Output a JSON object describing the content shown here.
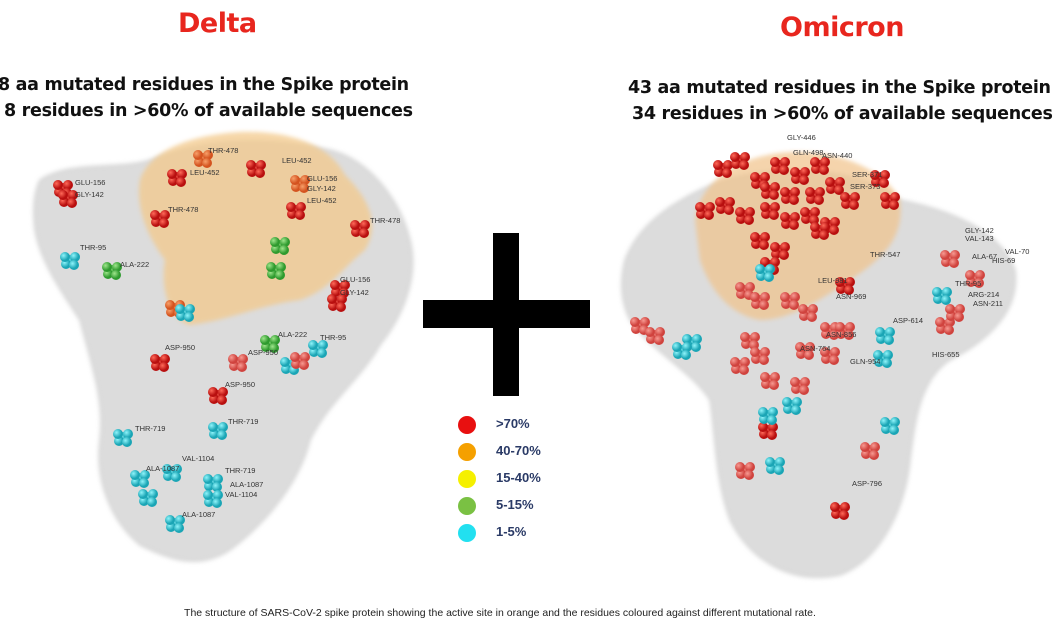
{
  "panels": {
    "delta": {
      "title": "Delta",
      "line1": "8 aa mutated residues in the Spike protein",
      "line2": "8 residues in >60% of available sequences",
      "residue_labels": [
        "THR-478",
        "LEU-452",
        "LEU-452",
        "GLU-156",
        "GLY-142",
        "LEU-452",
        "GLU-156",
        "GLY-142",
        "THR-478",
        "THR-478",
        "THR-95",
        "ALA-222",
        "GLU-156",
        "GLY-142",
        "ALA-222",
        "THR-95",
        "ASP-950",
        "ASP-950",
        "ASP-950",
        "THR-719",
        "THR-719",
        "VAL-1104",
        "ALA-1087",
        "THR-719",
        "ALA-1087",
        "VAL-1104",
        "ALA-1087"
      ]
    },
    "omicron": {
      "title": "Omicron",
      "line1": "43 aa mutated residues in the Spike protein",
      "line2": "34 residues in >60% of available sequences",
      "residue_labels": [
        "GLY-446",
        "GLN-498",
        "ASN-440",
        "SER-371",
        "SER-373",
        "THR-547",
        "LEU-981",
        "ASN-969",
        "ASP-614",
        "ASN-856",
        "ASN-764",
        "GLN-954",
        "HIS-655",
        "GLY-142",
        "VAL-143",
        "VAL-70",
        "ALA-67",
        "HIS-69",
        "THR-95",
        "ARG-214",
        "ASN-211",
        "ASP-796"
      ]
    }
  },
  "operator_symbol": "plus",
  "legend": [
    {
      "label": ">70%",
      "color": "#e81010"
    },
    {
      "label": "40-70%",
      "color": "#f5a000"
    },
    {
      "label": "15-40%",
      "color": "#f5f000"
    },
    {
      "label": "5-15%",
      "color": "#7ac143"
    },
    {
      "label": "1-5%",
      "color": "#22e0f0"
    }
  ],
  "colors": {
    "title": "#e8261e",
    "protein": "#d9d9d9",
    "active_site": "#f3c98b"
  },
  "caption": "The structure of SARS-CoV-2 spike protein showing the active site in orange and the residues coloured against different mutational rate."
}
